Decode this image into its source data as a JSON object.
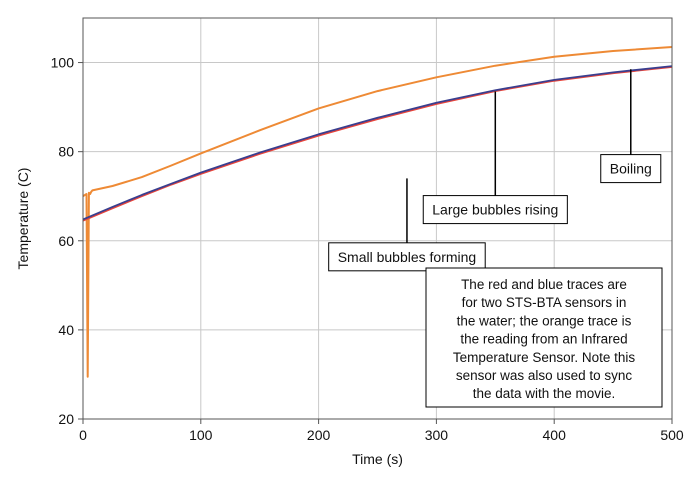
{
  "chart_data": {
    "type": "line",
    "xlabel": "Time (s)",
    "ylabel": "Temperature (C)",
    "xlim": [
      0,
      500
    ],
    "ylim": [
      20,
      110
    ],
    "x_ticks": [
      0,
      100,
      200,
      300,
      400,
      500
    ],
    "y_ticks": [
      20,
      40,
      60,
      80,
      100
    ],
    "grid": true,
    "colors": {
      "red": "#e8443a",
      "blue": "#3a3f8f",
      "orange": "#ee8a35",
      "grid": "#c8c8c8",
      "frame": "#555555"
    },
    "series": [
      {
        "color_key": "red",
        "x": [
          0,
          25,
          50,
          75,
          100,
          150,
          200,
          250,
          300,
          350,
          400,
          450,
          500
        ],
        "y": [
          64.5,
          67.3,
          70.0,
          72.6,
          75.0,
          79.5,
          83.6,
          87.3,
          90.7,
          93.6,
          95.9,
          97.6,
          99.0
        ]
      },
      {
        "color_key": "blue",
        "x": [
          0,
          25,
          50,
          75,
          100,
          150,
          200,
          250,
          300,
          350,
          400,
          450,
          500
        ],
        "y": [
          64.8,
          67.6,
          70.3,
          72.8,
          75.3,
          79.8,
          83.9,
          87.6,
          91.0,
          93.8,
          96.1,
          97.8,
          99.2
        ]
      },
      {
        "color_key": "orange",
        "x": [
          0,
          3,
          4,
          5,
          6,
          7,
          8,
          25,
          50,
          75,
          100,
          150,
          200,
          250,
          300,
          350,
          400,
          450,
          500
        ],
        "y": [
          70.0,
          70.5,
          29.5,
          70.8,
          70.5,
          71.0,
          71.3,
          72.3,
          74.3,
          76.9,
          79.6,
          84.8,
          89.7,
          93.6,
          96.7,
          99.3,
          101.3,
          102.6,
          103.5
        ]
      }
    ],
    "annotations": [
      {
        "id": "small",
        "text": "Small bubbles forming",
        "x": 275,
        "y": 56.4,
        "line_to": [
          275,
          74
        ]
      },
      {
        "id": "large",
        "text": "Large bubbles rising",
        "x": 350,
        "y": 67.0,
        "line_to": [
          350,
          93.5
        ]
      },
      {
        "id": "boiling",
        "text": "Boiling",
        "x": 465,
        "y": 76.2,
        "line_to": [
          465,
          98.5
        ]
      }
    ],
    "note": [
      "The red and blue traces are",
      "for two STS-BTA sensors in",
      "the water; the orange trace is",
      "the reading from an Infrared",
      "Temperature Sensor. Note this",
      "sensor was also used to sync",
      "the data with the movie."
    ]
  }
}
